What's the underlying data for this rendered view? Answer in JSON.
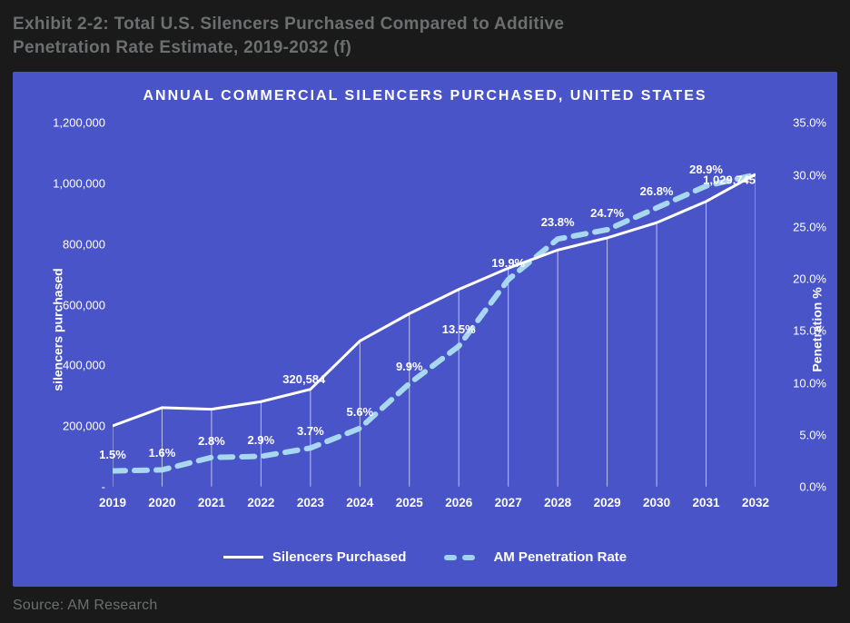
{
  "exhibit_title_line1": "Exhibit 2-2: Total U.S. Silencers Purchased Compared to Additive",
  "exhibit_title_line2": "Penetration Rate Estimate, 2019-2032 (f)",
  "chart_title": "ANNUAL COMMERCIAL SILENCERS PURCHASED, UNITED STATES",
  "source_text": "Source: AM Research",
  "colors": {
    "page_bg": "#1a1a1a",
    "title_text": "#6b6f6f",
    "chart_bg": "#4954c9",
    "text": "#ffffff",
    "series_solid": "#ffffff",
    "series_dashed": "#a8d8f0"
  },
  "chart": {
    "type": "dual-axis-line",
    "categories": [
      "2019",
      "2020",
      "2021",
      "2022",
      "2023",
      "2024",
      "2025",
      "2026",
      "2027",
      "2028",
      "2029",
      "2030",
      "2031",
      "2032"
    ],
    "silencers": [
      200000,
      260000,
      255000,
      280000,
      320584,
      480000,
      570000,
      650000,
      720000,
      780000,
      820000,
      870000,
      940000,
      1029745
    ],
    "penetration": [
      1.5,
      1.6,
      2.8,
      2.9,
      3.7,
      5.6,
      9.9,
      13.5,
      19.9,
      23.8,
      24.7,
      26.8,
      28.9,
      30.0
    ],
    "y_left": {
      "min": 0,
      "max": 1200000,
      "step": 200000,
      "title": "silencers purchased"
    },
    "y_right": {
      "min": 0,
      "max": 35,
      "step": 5,
      "title": "Penetration %"
    },
    "y_left_tick_labels": [
      "-",
      "200,000",
      "400,000",
      "600,000",
      "800,000",
      "1,000,000",
      "1,200,000"
    ],
    "y_right_tick_labels": [
      "0.0%",
      "5.0%",
      "10.0%",
      "15.0%",
      "20.0%",
      "25.0%",
      "30.0%",
      "35.0%"
    ],
    "callouts": [
      {
        "series": "silencers",
        "index": 4,
        "text": "320,584"
      },
      {
        "series": "silencers",
        "index": 13,
        "text": "1,029,745"
      }
    ],
    "legend": {
      "solid": "Silencers Purchased",
      "dashed": "AM Penetration Rate"
    },
    "fonts": {
      "chart_title_size": 16,
      "axis_label_size": 13,
      "axis_title_size": 14,
      "legend_size": 15,
      "data_label_size": 13
    },
    "line_widths": {
      "solid": 3,
      "dashed": 6,
      "drop": 1
    }
  }
}
